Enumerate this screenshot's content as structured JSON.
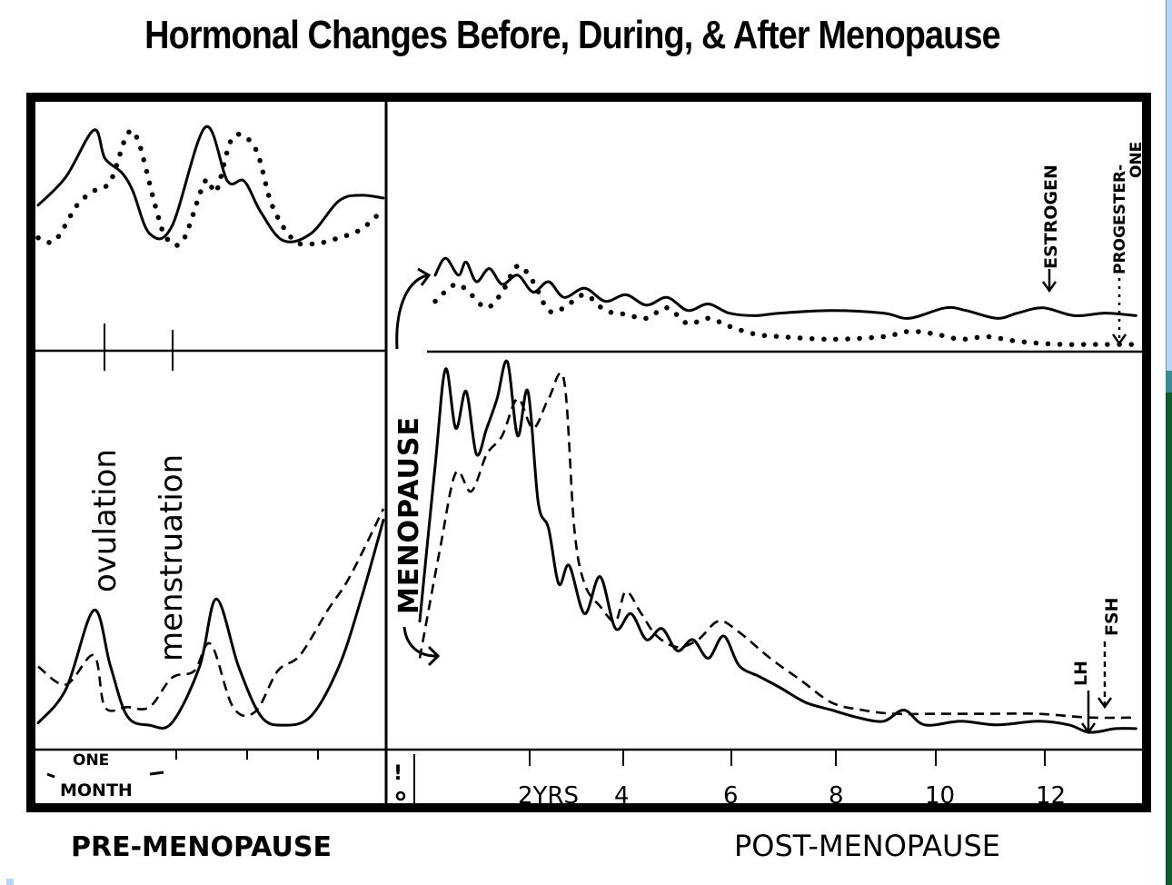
{
  "chart_data": {
    "type": "line",
    "title": "Hormonal Changes Before, During, & After Menopause",
    "sections": {
      "left_label": "PRE-MENOPAUSE",
      "right_label": "POST-MENOPAUSE",
      "divider_label": "MENOPAUSE"
    },
    "pre_menopause": {
      "x_unit_label": "ONE MONTH",
      "x_ticks_months": [
        1,
        2,
        3
      ],
      "event_markers": [
        {
          "label": "ovulation",
          "x_month": 0.5
        },
        {
          "label": "menstruation",
          "x_month": 1.0
        }
      ],
      "top_panel": {
        "series": [
          {
            "name": "Estrogen",
            "style": "solid",
            "x": [
              0,
              0.25,
              0.5,
              0.6,
              0.75,
              0.85,
              1.0,
              1.2,
              1.5,
              1.7,
              1.85,
              2.0,
              2.2,
              2.45,
              2.7,
              2.9,
              3.1
            ],
            "y": [
              0.45,
              0.65,
              0.98,
              0.78,
              0.68,
              0.55,
              0.25,
              0.3,
              1.0,
              0.62,
              0.62,
              0.4,
              0.2,
              0.25,
              0.48,
              0.52,
              0.5
            ]
          },
          {
            "name": "Progesterone",
            "style": "dotted",
            "x": [
              0,
              0.15,
              0.35,
              0.5,
              0.65,
              0.8,
              0.9,
              1.05,
              1.15,
              1.3,
              1.5,
              1.6,
              1.75,
              1.95,
              2.1,
              2.3,
              2.5,
              2.7,
              2.9,
              3.1
            ],
            "y": [
              0.22,
              0.2,
              0.45,
              0.55,
              0.62,
              0.95,
              0.9,
              0.45,
              0.22,
              0.2,
              0.62,
              0.55,
              0.93,
              0.85,
              0.45,
              0.2,
              0.18,
              0.22,
              0.28,
              0.42
            ]
          }
        ]
      },
      "bottom_panel": {
        "series": [
          {
            "name": "LH",
            "style": "solid",
            "x": [
              0,
              0.25,
              0.5,
              0.65,
              0.8,
              1.0,
              1.2,
              1.45,
              1.6,
              1.8,
              2.0,
              2.2,
              2.45,
              2.7,
              2.9,
              3.1
            ],
            "y": [
              0.05,
              0.2,
              0.55,
              0.3,
              0.08,
              0.04,
              0.05,
              0.3,
              0.6,
              0.3,
              0.08,
              0.04,
              0.08,
              0.3,
              0.6,
              0.95
            ]
          },
          {
            "name": "FSH",
            "style": "dashed",
            "x": [
              0,
              0.25,
              0.5,
              0.6,
              0.8,
              1.0,
              1.2,
              1.4,
              1.55,
              1.75,
              1.95,
              2.15,
              2.35,
              2.6,
              2.8,
              3.1
            ],
            "y": [
              0.3,
              0.22,
              0.35,
              0.12,
              0.12,
              0.12,
              0.25,
              0.28,
              0.4,
              0.12,
              0.1,
              0.28,
              0.35,
              0.55,
              0.7,
              1.0
            ]
          }
        ]
      }
    },
    "post_menopause": {
      "x_label": "YRS",
      "x_tick_labels": [
        "0",
        "2YRS",
        "4",
        "6",
        "8",
        "10",
        "12"
      ],
      "x_ticks": [
        0,
        2,
        4,
        6,
        8,
        10,
        12
      ],
      "xlim": [
        0,
        14
      ],
      "top_panel": {
        "series": [
          {
            "name": "Estrogen",
            "style": "solid",
            "x": [
              0.3,
              0.5,
              0.75,
              0.9,
              1.1,
              1.35,
              1.6,
              1.9,
              2.2,
              2.5,
              2.8,
              3.2,
              3.6,
              4.0,
              4.4,
              4.8,
              5.2,
              5.6,
              6.0,
              6.5,
              7.0,
              8.0,
              9.0,
              9.5,
              10.2,
              10.6,
              11.2,
              11.6,
              12.1,
              12.7,
              13.3,
              13.9
            ],
            "y": [
              0.55,
              0.68,
              0.55,
              0.65,
              0.5,
              0.6,
              0.48,
              0.55,
              0.42,
              0.5,
              0.38,
              0.45,
              0.35,
              0.4,
              0.32,
              0.38,
              0.28,
              0.33,
              0.26,
              0.24,
              0.26,
              0.28,
              0.26,
              0.22,
              0.3,
              0.28,
              0.22,
              0.26,
              0.3,
              0.24,
              0.26,
              0.24
            ]
          },
          {
            "name": "Progesterone",
            "style": "dotted",
            "x": [
              0.3,
              0.7,
              1.0,
              1.3,
              1.6,
              1.9,
              2.2,
              2.5,
              2.8,
              3.2,
              3.6,
              4.0,
              4.4,
              4.8,
              5.2,
              5.6,
              6.0,
              6.5,
              7.0,
              8.0,
              9.0,
              9.5,
              10.0,
              10.5,
              11.0,
              11.5,
              12.0,
              12.5,
              13.0,
              13.9
            ],
            "y": [
              0.35,
              0.48,
              0.4,
              0.3,
              0.42,
              0.62,
              0.5,
              0.28,
              0.3,
              0.4,
              0.28,
              0.25,
              0.22,
              0.3,
              0.18,
              0.22,
              0.16,
              0.1,
              0.08,
              0.06,
              0.08,
              0.12,
              0.1,
              0.06,
              0.08,
              0.05,
              0.03,
              0.02,
              0.02,
              0.02
            ]
          }
        ],
        "annotations": [
          {
            "label": "ESTROGEN",
            "x": 12.1
          },
          {
            "label": "PROGESTER-ONE",
            "x": 13.5
          }
        ]
      },
      "bottom_panel": {
        "series": [
          {
            "name": "LH",
            "style": "solid",
            "x": [
              0.0,
              0.3,
              0.5,
              0.7,
              0.9,
              1.1,
              1.3,
              1.5,
              1.7,
              1.9,
              2.1,
              2.3,
              2.5,
              2.7,
              2.9,
              3.2,
              3.5,
              3.8,
              4.1,
              4.4,
              4.7,
              5.0,
              5.3,
              5.6,
              5.9,
              6.2,
              6.6,
              7.0,
              7.5,
              8.0,
              8.5,
              9.0,
              9.4,
              9.8,
              10.5,
              11.2,
              12.0,
              12.6,
              13.0,
              13.5,
              13.9
            ],
            "y": [
              0.3,
              0.72,
              0.98,
              0.82,
              0.92,
              0.75,
              0.82,
              0.9,
              1.0,
              0.8,
              0.92,
              0.62,
              0.55,
              0.4,
              0.45,
              0.32,
              0.42,
              0.28,
              0.32,
              0.25,
              0.28,
              0.22,
              0.25,
              0.2,
              0.26,
              0.18,
              0.15,
              0.12,
              0.08,
              0.06,
              0.04,
              0.03,
              0.06,
              0.02,
              0.03,
              0.02,
              0.03,
              0.02,
              0.0,
              0.01,
              0.01
            ]
          },
          {
            "name": "FSH",
            "style": "dashed",
            "x": [
              0.0,
              0.4,
              0.7,
              1.0,
              1.3,
              1.6,
              1.9,
              2.2,
              2.5,
              2.8,
              3.0,
              3.2,
              3.5,
              3.8,
              4.0,
              4.3,
              4.6,
              5.0,
              5.4,
              5.8,
              6.2,
              6.8,
              7.4,
              8.0,
              8.6,
              9.2,
              10.0,
              11.0,
              12.0,
              13.0,
              13.9
            ],
            "y": [
              0.2,
              0.5,
              0.7,
              0.65,
              0.75,
              0.8,
              0.9,
              0.82,
              0.9,
              0.95,
              0.55,
              0.4,
              0.34,
              0.3,
              0.38,
              0.32,
              0.26,
              0.23,
              0.25,
              0.3,
              0.27,
              0.2,
              0.14,
              0.08,
              0.06,
              0.05,
              0.05,
              0.05,
              0.05,
              0.04,
              0.04
            ]
          }
        ],
        "annotations": [
          {
            "label": "LH",
            "x": 12.9
          },
          {
            "label": "FSH",
            "x": 13.3
          }
        ]
      }
    },
    "legend": [
      {
        "name": "Estrogen",
        "style": "solid",
        "panel": "top"
      },
      {
        "name": "Progesterone",
        "style": "dotted",
        "panel": "top"
      },
      {
        "name": "LH",
        "style": "solid",
        "panel": "bottom"
      },
      {
        "name": "FSH",
        "style": "dashed",
        "panel": "bottom"
      }
    ],
    "grid": false
  },
  "labels": {
    "title": "Hormonal Changes Before, During, & After Menopause",
    "pre": "PRE-MENOPAUSE",
    "post": "POST-MENOPAUSE",
    "menopause": "MENOPAUSE",
    "one": "ONE",
    "month": "MONTH",
    "ovulation": "ovulation",
    "menstruation": "menstruation",
    "estrogen": "ESTROGEN",
    "progesterone_a": "PROGESTER-",
    "progesterone_b": "ONE",
    "lh": "LH",
    "fsh": "FSH",
    "zero": "0"
  }
}
